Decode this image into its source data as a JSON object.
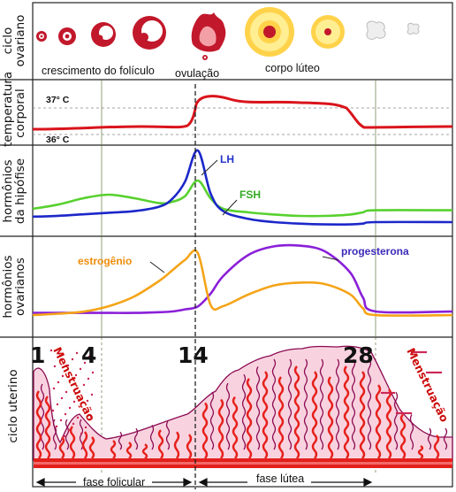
{
  "colors": {
    "temperature": "#d9141b",
    "lh": "#1c27c9",
    "fsh": "#58d12f",
    "estrogen": "#f5a418",
    "progesterone": "#8a1fd8",
    "follicle": "#c2182b",
    "corpus_outer": "#ffd24a",
    "corpus_inner": "#ffee92",
    "endometrium_fill": "#f8d3df",
    "vessel": "#e6201b",
    "gland": "#8b0a52",
    "menstruation_text": "#cc0c0c",
    "axis_label": "#111111",
    "series_label_lh": "#2233cc",
    "series_label_fsh": "#33aa22",
    "series_label_estrogen": "#ee8c0a",
    "series_label_progesterone": "#3a2ab8"
  },
  "row_labels": {
    "ovarian_cycle": [
      "ciclo",
      "ovariano"
    ],
    "temperature": [
      "temperatura",
      "corporal"
    ],
    "pituitary": [
      "hormônios",
      "da hipófise"
    ],
    "ovarian_hormones": [
      "hormônios",
      "ovarianos"
    ],
    "uterine_cycle": [
      "ciclo uterino"
    ]
  },
  "ovary_captions": {
    "follicle_growth": "crescimento do folículo",
    "ovulation": "ovulação",
    "corpus_luteum": "corpo lúteo"
  },
  "temperature": {
    "high_label": "37° C",
    "low_label": "36° C"
  },
  "pituitary": {
    "lh_label": "LH",
    "fsh_label": "FSH"
  },
  "ovarian": {
    "estrogen_label": "estrogênio",
    "progesterone_label": "progesterona"
  },
  "uterine": {
    "day_labels": [
      "1",
      "4",
      "14",
      "28"
    ],
    "menstruation_label": "Menstruação"
  },
  "phases": {
    "follicular": "fase folicular",
    "luteal": "fase lútea"
  },
  "chart_data": {
    "type": "line",
    "xlabel": "",
    "ylabel": "",
    "x": [
      1,
      3,
      5,
      7,
      9,
      11,
      12,
      13,
      14,
      15,
      16,
      18,
      20,
      22,
      24,
      26,
      27,
      28
    ],
    "series": [
      {
        "name": "LH",
        "values": [
          0.15,
          0.16,
          0.18,
          0.2,
          0.22,
          0.28,
          0.38,
          0.6,
          1.0,
          0.45,
          0.22,
          0.12,
          0.08,
          0.06,
          0.05,
          0.05,
          0.06,
          0.08
        ]
      },
      {
        "name": "FSH",
        "values": [
          0.2,
          0.26,
          0.35,
          0.4,
          0.35,
          0.28,
          0.3,
          0.38,
          0.6,
          0.35,
          0.2,
          0.15,
          0.12,
          0.1,
          0.1,
          0.12,
          0.15,
          0.18
        ]
      },
      {
        "name": "estrogênio",
        "values": [
          0.05,
          0.07,
          0.1,
          0.18,
          0.32,
          0.55,
          0.7,
          0.85,
          0.95,
          0.2,
          0.18,
          0.35,
          0.48,
          0.52,
          0.5,
          0.35,
          0.15,
          0.05
        ]
      },
      {
        "name": "progesterona",
        "values": [
          0.03,
          0.03,
          0.03,
          0.03,
          0.03,
          0.04,
          0.05,
          0.08,
          0.12,
          0.3,
          0.55,
          0.85,
          0.97,
          0.98,
          0.9,
          0.6,
          0.25,
          0.05
        ]
      }
    ]
  }
}
